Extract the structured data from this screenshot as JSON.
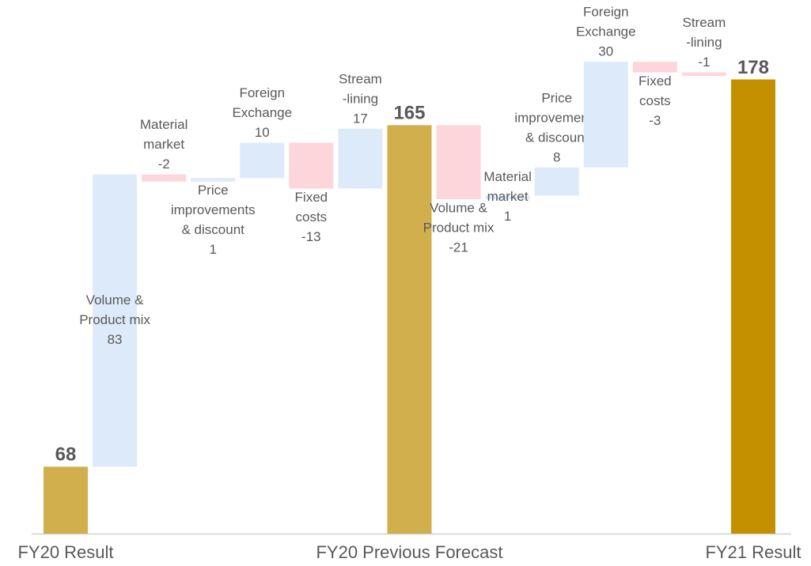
{
  "chart_data": {
    "type": "waterfall",
    "categories": [
      "FY20 Result",
      null,
      null,
      null,
      null,
      null,
      null,
      "FY20 Previous Forecast",
      null,
      null,
      null,
      null,
      null,
      null,
      "FY21 Result"
    ],
    "bar_labels": [
      null,
      [
        "Volume &",
        "Product mix"
      ],
      [
        "Material",
        "market"
      ],
      [
        "Price",
        "improvements",
        "& discount"
      ],
      [
        "Foreign",
        "Exchange"
      ],
      [
        "Fixed",
        "costs"
      ],
      [
        "Stream",
        "-lining"
      ],
      null,
      [
        "Volume &",
        "Product mix"
      ],
      [
        "Material",
        "market"
      ],
      [
        "Price",
        "improvements",
        "& discount"
      ],
      [
        "Foreign",
        "Exchange"
      ],
      [
        "Fixed",
        "costs"
      ],
      [
        "Stream",
        "-lining"
      ],
      null
    ],
    "values": [
      68,
      83,
      -2,
      1,
      10,
      -13,
      17,
      165,
      -21,
      1,
      8,
      30,
      -3,
      -1,
      178
    ],
    "totals": [
      true,
      false,
      false,
      false,
      false,
      false,
      false,
      true,
      false,
      false,
      false,
      false,
      false,
      false,
      true
    ],
    "colors": [
      "#d1af4c",
      "#dceafa",
      "#fcd6da",
      "#dceafa",
      "#dceafa",
      "#fcd6da",
      "#dceafa",
      "#d1af4c",
      "#fcd6da",
      "#dceafa",
      "#dceafa",
      "#dceafa",
      "#fcd6da",
      "#fcd6da",
      "#c49000"
    ],
    "ylim": [
      49,
      200
    ]
  }
}
